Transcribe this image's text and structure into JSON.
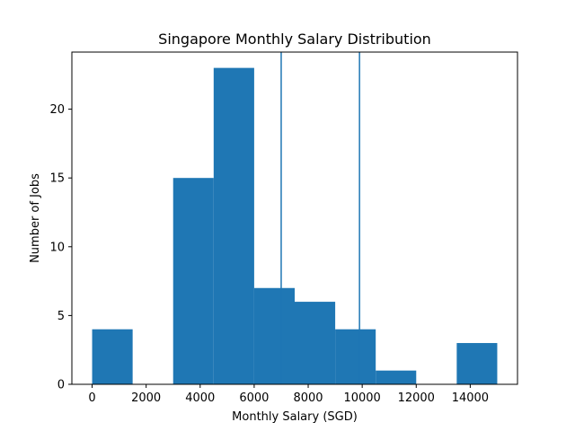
{
  "chart_data": {
    "type": "bar",
    "title": "Singapore Monthly Salary Distribution",
    "xlabel": "Monthly Salary (SGD)",
    "ylabel": "Number of Jobs",
    "xlim": [
      -750,
      15750
    ],
    "ylim": [
      0,
      24.15
    ],
    "x_ticks": [
      0,
      2000,
      4000,
      6000,
      8000,
      10000,
      12000,
      14000
    ],
    "y_ticks": [
      0,
      5,
      10,
      15,
      20
    ],
    "bins": [
      {
        "start": 0,
        "end": 1500,
        "count": 4
      },
      {
        "start": 1500,
        "end": 3000,
        "count": 0
      },
      {
        "start": 3000,
        "end": 4500,
        "count": 15
      },
      {
        "start": 4500,
        "end": 6000,
        "count": 23
      },
      {
        "start": 6000,
        "end": 7500,
        "count": 7
      },
      {
        "start": 7500,
        "end": 9000,
        "count": 6
      },
      {
        "start": 9000,
        "end": 10500,
        "count": 4
      },
      {
        "start": 10500,
        "end": 12000,
        "count": 1
      },
      {
        "start": 12000,
        "end": 13500,
        "count": 0
      },
      {
        "start": 13500,
        "end": 15000,
        "count": 3
      }
    ],
    "vertical_lines": [
      7000,
      9900
    ],
    "colors": {
      "bar": "#1f77b4",
      "line": "#1f77b4"
    },
    "grid": false,
    "legend": "none"
  }
}
